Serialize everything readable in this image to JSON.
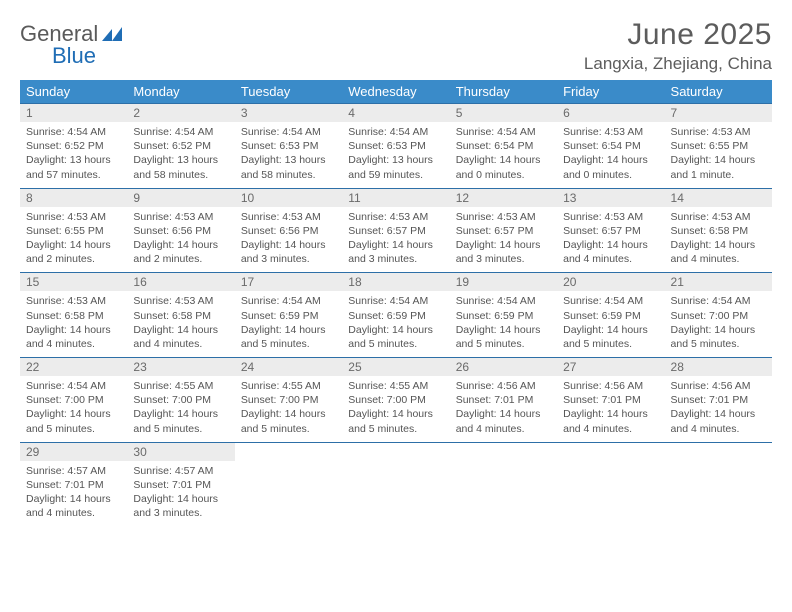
{
  "logo": {
    "text1": "General",
    "text2": "Blue"
  },
  "title": "June 2025",
  "location": "Langxia, Zhejiang, China",
  "colors": {
    "header_bg": "#3a8bc9",
    "header_fg": "#ffffff",
    "rule": "#2d6fa7",
    "daynum_bg": "#ececec",
    "text": "#555555",
    "logo_blue": "#1f6db5"
  },
  "weekdays": [
    "Sunday",
    "Monday",
    "Tuesday",
    "Wednesday",
    "Thursday",
    "Friday",
    "Saturday"
  ],
  "weeks": [
    [
      {
        "n": "1",
        "sunrise": "4:54 AM",
        "sunset": "6:52 PM",
        "daylight": "13 hours and 57 minutes."
      },
      {
        "n": "2",
        "sunrise": "4:54 AM",
        "sunset": "6:52 PM",
        "daylight": "13 hours and 58 minutes."
      },
      {
        "n": "3",
        "sunrise": "4:54 AM",
        "sunset": "6:53 PM",
        "daylight": "13 hours and 58 minutes."
      },
      {
        "n": "4",
        "sunrise": "4:54 AM",
        "sunset": "6:53 PM",
        "daylight": "13 hours and 59 minutes."
      },
      {
        "n": "5",
        "sunrise": "4:54 AM",
        "sunset": "6:54 PM",
        "daylight": "14 hours and 0 minutes."
      },
      {
        "n": "6",
        "sunrise": "4:53 AM",
        "sunset": "6:54 PM",
        "daylight": "14 hours and 0 minutes."
      },
      {
        "n": "7",
        "sunrise": "4:53 AM",
        "sunset": "6:55 PM",
        "daylight": "14 hours and 1 minute."
      }
    ],
    [
      {
        "n": "8",
        "sunrise": "4:53 AM",
        "sunset": "6:55 PM",
        "daylight": "14 hours and 2 minutes."
      },
      {
        "n": "9",
        "sunrise": "4:53 AM",
        "sunset": "6:56 PM",
        "daylight": "14 hours and 2 minutes."
      },
      {
        "n": "10",
        "sunrise": "4:53 AM",
        "sunset": "6:56 PM",
        "daylight": "14 hours and 3 minutes."
      },
      {
        "n": "11",
        "sunrise": "4:53 AM",
        "sunset": "6:57 PM",
        "daylight": "14 hours and 3 minutes."
      },
      {
        "n": "12",
        "sunrise": "4:53 AM",
        "sunset": "6:57 PM",
        "daylight": "14 hours and 3 minutes."
      },
      {
        "n": "13",
        "sunrise": "4:53 AM",
        "sunset": "6:57 PM",
        "daylight": "14 hours and 4 minutes."
      },
      {
        "n": "14",
        "sunrise": "4:53 AM",
        "sunset": "6:58 PM",
        "daylight": "14 hours and 4 minutes."
      }
    ],
    [
      {
        "n": "15",
        "sunrise": "4:53 AM",
        "sunset": "6:58 PM",
        "daylight": "14 hours and 4 minutes."
      },
      {
        "n": "16",
        "sunrise": "4:53 AM",
        "sunset": "6:58 PM",
        "daylight": "14 hours and 4 minutes."
      },
      {
        "n": "17",
        "sunrise": "4:54 AM",
        "sunset": "6:59 PM",
        "daylight": "14 hours and 5 minutes."
      },
      {
        "n": "18",
        "sunrise": "4:54 AM",
        "sunset": "6:59 PM",
        "daylight": "14 hours and 5 minutes."
      },
      {
        "n": "19",
        "sunrise": "4:54 AM",
        "sunset": "6:59 PM",
        "daylight": "14 hours and 5 minutes."
      },
      {
        "n": "20",
        "sunrise": "4:54 AM",
        "sunset": "6:59 PM",
        "daylight": "14 hours and 5 minutes."
      },
      {
        "n": "21",
        "sunrise": "4:54 AM",
        "sunset": "7:00 PM",
        "daylight": "14 hours and 5 minutes."
      }
    ],
    [
      {
        "n": "22",
        "sunrise": "4:54 AM",
        "sunset": "7:00 PM",
        "daylight": "14 hours and 5 minutes."
      },
      {
        "n": "23",
        "sunrise": "4:55 AM",
        "sunset": "7:00 PM",
        "daylight": "14 hours and 5 minutes."
      },
      {
        "n": "24",
        "sunrise": "4:55 AM",
        "sunset": "7:00 PM",
        "daylight": "14 hours and 5 minutes."
      },
      {
        "n": "25",
        "sunrise": "4:55 AM",
        "sunset": "7:00 PM",
        "daylight": "14 hours and 5 minutes."
      },
      {
        "n": "26",
        "sunrise": "4:56 AM",
        "sunset": "7:01 PM",
        "daylight": "14 hours and 4 minutes."
      },
      {
        "n": "27",
        "sunrise": "4:56 AM",
        "sunset": "7:01 PM",
        "daylight": "14 hours and 4 minutes."
      },
      {
        "n": "28",
        "sunrise": "4:56 AM",
        "sunset": "7:01 PM",
        "daylight": "14 hours and 4 minutes."
      }
    ],
    [
      {
        "n": "29",
        "sunrise": "4:57 AM",
        "sunset": "7:01 PM",
        "daylight": "14 hours and 4 minutes."
      },
      {
        "n": "30",
        "sunrise": "4:57 AM",
        "sunset": "7:01 PM",
        "daylight": "14 hours and 3 minutes."
      },
      null,
      null,
      null,
      null,
      null
    ]
  ],
  "labels": {
    "sunrise": "Sunrise:",
    "sunset": "Sunset:",
    "daylight": "Daylight:"
  }
}
